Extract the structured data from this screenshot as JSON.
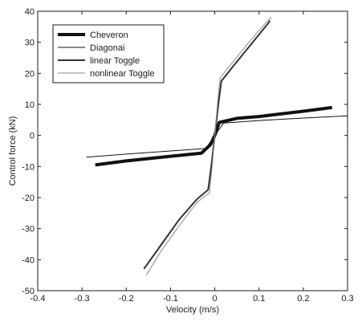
{
  "chart_data": {
    "type": "line",
    "title": "",
    "xlabel": "Velocity (m/s)",
    "ylabel": "Control force (kN)",
    "xlim": [
      -0.4,
      0.3
    ],
    "ylim": [
      -50,
      40
    ],
    "x_ticks": [
      -0.4,
      -0.3,
      -0.2,
      -0.1,
      0,
      0.1,
      0.2,
      0.3
    ],
    "x_tick_labels": [
      "-0.4",
      "-0.3",
      "-0.2",
      "-0.1",
      "0",
      "0.1",
      "0.2",
      "0.3"
    ],
    "y_ticks": [
      -50,
      -40,
      -30,
      -20,
      -10,
      0,
      10,
      20,
      30,
      40
    ],
    "y_tick_labels": [
      "-50",
      "-40",
      "-30",
      "-20",
      "-10",
      "0",
      "10",
      "20",
      "30",
      "40"
    ],
    "grid": false,
    "legend_position": "top-left",
    "series": [
      {
        "name": "Cheveron",
        "color": "#111111",
        "style": "thick",
        "x": [
          -0.27,
          -0.2,
          -0.1,
          -0.03,
          -0.01,
          0.0,
          0.01,
          0.05,
          0.1,
          0.2,
          0.265
        ],
        "y": [
          -9.5,
          -8.2,
          -6.7,
          -5.7,
          -3.0,
          0.0,
          4.2,
          5.5,
          6.1,
          7.8,
          9.0
        ]
      },
      {
        "name": "Diagonai",
        "color": "#111111",
        "style": "thin",
        "x": [
          -0.29,
          -0.2,
          -0.1,
          -0.02,
          0.0,
          0.02,
          0.1,
          0.2,
          0.3
        ],
        "y": [
          -7.0,
          -6.0,
          -5.0,
          -4.2,
          0.0,
          4.0,
          4.8,
          5.6,
          6.3
        ]
      },
      {
        "name": "linear Toggle",
        "color": "#333333",
        "style": "medium",
        "x": [
          -0.16,
          -0.12,
          -0.08,
          -0.04,
          -0.015,
          -0.008,
          0.0,
          0.008,
          0.015,
          0.04,
          0.08,
          0.12,
          0.125
        ],
        "y": [
          -43.0,
          -35.0,
          -27.0,
          -20.5,
          -17.5,
          -10.0,
          0.0,
          10.0,
          17.5,
          22.0,
          29.0,
          36.0,
          37.0
        ]
      },
      {
        "name": "nonlinear Toggle",
        "color": "#8a8a8a",
        "style": "thin",
        "x": [
          -0.155,
          -0.12,
          -0.08,
          -0.04,
          -0.012,
          -0.006,
          0.0,
          0.006,
          0.012,
          0.04,
          0.08,
          0.12,
          0.128
        ],
        "y": [
          -45.0,
          -37.0,
          -29.0,
          -21.5,
          -18.5,
          -10.0,
          0.0,
          10.0,
          18.5,
          23.5,
          30.5,
          37.0,
          38.0
        ]
      }
    ],
    "annotations": []
  }
}
